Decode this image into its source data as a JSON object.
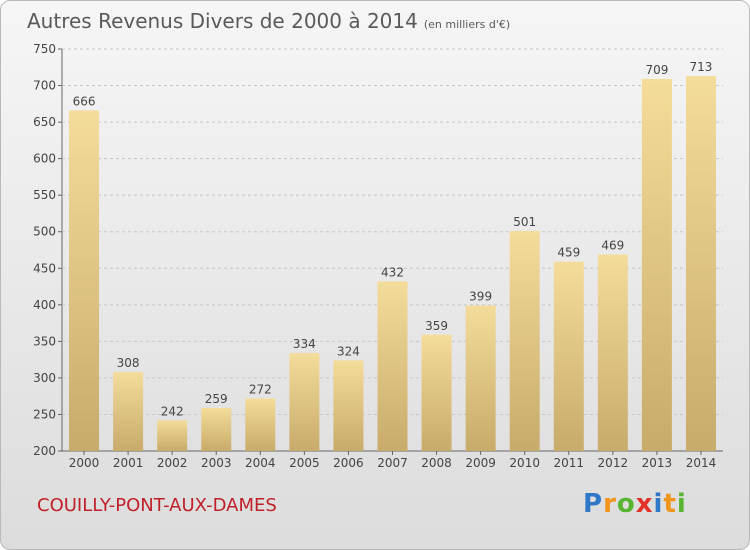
{
  "title": "Autres Revenus Divers de 2000 à 2014",
  "unit_note": "(en milliers d'€)",
  "place_name": "COUILLY-PONT-AUX-DAMES",
  "logo": {
    "text": "Proxiti"
  },
  "colors": {
    "bar_light": "#f4dc9a",
    "bar_dark": "#c8ab6a",
    "place": "#c0202a",
    "title": "#5a5a5a"
  },
  "chart_data": {
    "type": "bar",
    "categories": [
      "2000",
      "2001",
      "2002",
      "2003",
      "2004",
      "2005",
      "2006",
      "2007",
      "2008",
      "2009",
      "2010",
      "2011",
      "2012",
      "2013",
      "2014"
    ],
    "values": [
      666,
      308,
      242,
      259,
      272,
      334,
      324,
      432,
      359,
      399,
      501,
      459,
      469,
      709,
      713
    ],
    "title": "Autres Revenus Divers de 2000 à 2014",
    "subtitle": "(en milliers d'€)",
    "xlabel": "",
    "ylabel": "",
    "ylim": [
      200,
      750
    ],
    "yticks": [
      200,
      250,
      300,
      350,
      400,
      450,
      500,
      550,
      600,
      650,
      700,
      750
    ],
    "grid": true,
    "data_labels": true
  }
}
